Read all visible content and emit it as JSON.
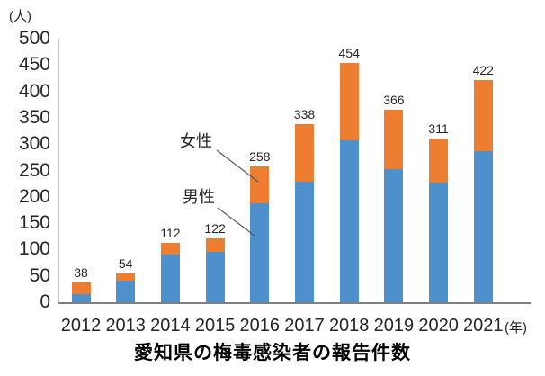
{
  "chart_data": {
    "type": "bar",
    "stacked": true,
    "title": "愛知県の梅毒感染者の報告件数",
    "ylabel": "(人)",
    "xlabel": "(年)",
    "ylim": [
      0,
      500
    ],
    "yticks": [
      0,
      50,
      100,
      150,
      200,
      250,
      300,
      350,
      400,
      450,
      500
    ],
    "grid": false,
    "legend": "leader-line annotations inside plot (no legend box)",
    "categories": [
      "2012",
      "2013",
      "2014",
      "2015",
      "2016",
      "2017",
      "2018",
      "2019",
      "2020",
      "2021"
    ],
    "series": [
      {
        "name": "男性",
        "color": "#4e90cc",
        "values": [
          16,
          41,
          91,
          95,
          188,
          229,
          307,
          252,
          227,
          286
        ]
      },
      {
        "name": "女性",
        "color": "#ed7d31",
        "values": [
          22,
          13,
          21,
          27,
          70,
          109,
          147,
          114,
          84,
          136
        ]
      }
    ],
    "totals": [
      38,
      54,
      112,
      122,
      258,
      338,
      454,
      366,
      311,
      422
    ],
    "colors": {
      "male_blue": "#4e90cc",
      "female_orange": "#ed7d31",
      "axis_gray": "#808080",
      "axis_light_gray": "#bfbfbf",
      "leader_line": "#595959",
      "text": "#262626"
    },
    "annotations": [
      {
        "label": "女性",
        "points_to": "female segment of 2016 bar"
      },
      {
        "label": "男性",
        "points_to": "male segment of 2016 bar"
      }
    ]
  }
}
